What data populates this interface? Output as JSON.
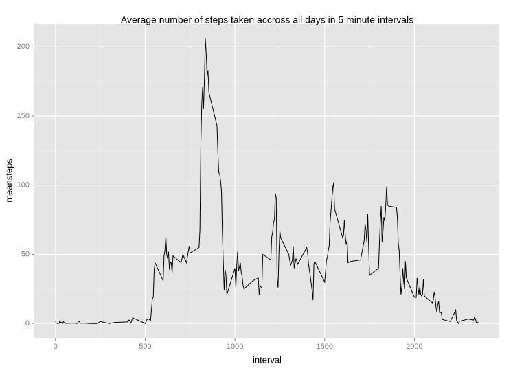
{
  "chart_data": {
    "type": "line",
    "title": "Average number of steps taken accross all days in 5 minute intervals",
    "x_label": "interval",
    "y_label": "meansteps",
    "x": [
      0,
      5,
      10,
      15,
      20,
      25,
      30,
      35,
      40,
      45,
      50,
      55,
      100,
      110,
      120,
      130,
      140,
      150,
      200,
      230,
      250,
      300,
      330,
      400,
      410,
      420,
      430,
      440,
      450,
      500,
      510,
      520,
      530,
      540,
      545,
      550,
      555,
      600,
      605,
      610,
      615,
      620,
      625,
      630,
      635,
      640,
      645,
      650,
      655,
      700,
      710,
      730,
      740,
      745,
      750,
      800,
      805,
      810,
      815,
      820,
      825,
      830,
      835,
      840,
      845,
      850,
      855,
      900,
      905,
      910,
      915,
      920,
      925,
      930,
      935,
      940,
      945,
      950,
      955,
      1000,
      1005,
      1010,
      1015,
      1020,
      1030,
      1035,
      1040,
      1045,
      1050,
      1100,
      1130,
      1135,
      1140,
      1150,
      1155,
      1200,
      1205,
      1210,
      1215,
      1220,
      1225,
      1230,
      1235,
      1240,
      1245,
      1250,
      1255,
      1300,
      1310,
      1320,
      1325,
      1330,
      1340,
      1345,
      1350,
      1400,
      1405,
      1410,
      1420,
      1430,
      1435,
      1440,
      1445,
      1500,
      1510,
      1515,
      1520,
      1525,
      1530,
      1545,
      1550,
      1555,
      1600,
      1605,
      1610,
      1615,
      1620,
      1625,
      1630,
      1645,
      1700,
      1720,
      1725,
      1730,
      1735,
      1740,
      1745,
      1750,
      1800,
      1805,
      1810,
      1815,
      1820,
      1825,
      1830,
      1835,
      1840,
      1845,
      1850,
      1855,
      1900,
      1905,
      1910,
      1915,
      1920,
      1925,
      1930,
      1935,
      1940,
      1945,
      1950,
      1955,
      2000,
      2005,
      2010,
      2015,
      2020,
      2025,
      2030,
      2035,
      2040,
      2045,
      2050,
      2055,
      2100,
      2105,
      2110,
      2115,
      2120,
      2125,
      2130,
      2135,
      2140,
      2145,
      2150,
      2155,
      2200,
      2230,
      2235,
      2245,
      2250,
      2300,
      2330,
      2335,
      2340,
      2345,
      2350,
      2355
    ],
    "series": [
      {
        "name": "meansteps",
        "color": "#000000",
        "values": [
          1.7,
          0.3,
          0.1,
          0.2,
          0.1,
          2.1,
          0.5,
          0.9,
          0,
          1.5,
          0.3,
          0.1,
          0.3,
          0.2,
          0,
          1.8,
          0.2,
          0.3,
          0,
          0,
          1.5,
          0,
          0.8,
          1.2,
          2.6,
          0.3,
          4.1,
          3.5,
          3.1,
          0,
          3,
          3.3,
          2.2,
          18,
          19,
          39,
          44,
          31,
          49,
          53,
          63,
          50,
          47,
          52,
          39,
          44,
          44,
          37,
          49,
          44,
          50,
          44,
          52,
          56,
          51,
          55,
          68,
          129,
          158,
          171,
          155,
          177,
          206,
          195,
          179,
          183,
          167,
          143,
          124,
          109,
          108,
          103,
          96,
          66,
          45,
          24,
          39,
          35,
          21,
          40,
          26,
          42,
          52,
          38,
          44,
          37,
          34,
          28,
          25,
          31,
          33,
          21,
          27,
          26,
          50,
          46,
          63,
          66,
          73,
          75,
          94,
          91,
          33,
          26,
          50,
          67,
          62,
          50,
          42,
          46,
          56,
          40,
          47,
          45,
          43,
          55,
          51,
          43,
          34,
          24,
          17,
          43,
          45,
          30,
          46,
          48,
          53,
          56,
          73,
          98,
          102,
          83,
          62,
          64,
          75,
          63,
          57,
          60,
          44,
          45,
          46,
          60,
          72,
          68,
          59,
          79,
          55,
          35,
          40,
          58,
          74,
          85,
          59,
          67,
          77,
          74,
          85,
          99,
          86,
          85,
          84,
          77,
          58,
          53,
          36,
          21,
          27,
          40,
          30,
          25,
          45,
          33,
          19,
          19,
          19,
          33,
          26,
          21,
          27,
          21,
          20,
          21,
          32,
          20,
          15,
          17,
          23,
          19,
          12,
          8,
          14,
          16,
          8,
          8,
          8,
          3,
          1.5,
          9.8,
          2.2,
          0.1,
          1.6,
          3.3,
          2.6,
          4.7,
          3.3,
          0.6,
          0.2,
          1.1
        ]
      }
    ],
    "xlim": [
      -117.75,
      2472.75
    ],
    "xticks": [
      0,
      500,
      1000,
      1500,
      2000
    ],
    "ylim": [
      -10.3,
      216.5
    ],
    "yticks": [
      0,
      50,
      100,
      150,
      200
    ],
    "grid": true
  }
}
